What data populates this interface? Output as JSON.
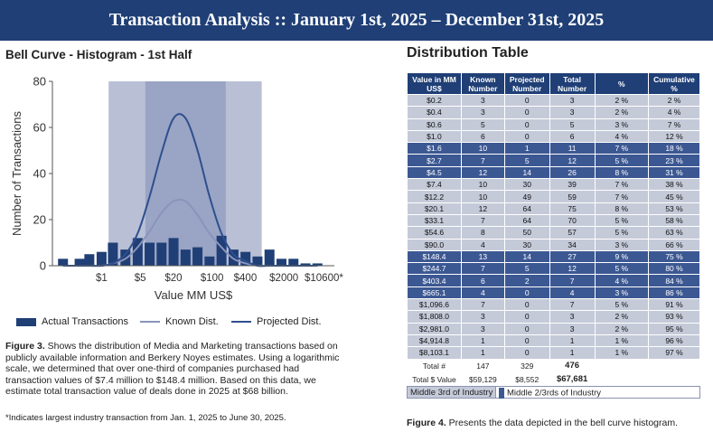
{
  "banner": {
    "title": "Transaction Analysis  ::  January 1st, 2025 – December 31st, 2025"
  },
  "left": {
    "title": "Bell Curve - Histogram - 1st Half",
    "legend": {
      "actual": "Actual Transactions",
      "known": "Known Dist.",
      "projected": "Projected Dist."
    },
    "caption_lead": "Figure 3.",
    "caption_text": " Shows the distribution of Media and Marketing transactions based on publicly available information and Berkery Noyes estimates. Using a logarithmic scale, we determined that over one-third of companies purchased had transaction values of $7.4 million to $148.4 million. Based on this data, we estimate total transaction value of deals done in 2025 at $68 billion.",
    "footnote": "*Indicates largest industry transaction from Jan. 1, 2025 to June 30, 2025."
  },
  "right": {
    "title": "Distribution Table",
    "headers": [
      "Value in MM US$",
      "Known Number",
      "Projected Number",
      "Total Number",
      "%",
      "Cumulative %"
    ],
    "rows": [
      {
        "v": "$0.2",
        "k": "3",
        "p": "0",
        "t": "3",
        "pct": "2 %",
        "cum": "2 %",
        "shade": "light"
      },
      {
        "v": "$0.4",
        "k": "3",
        "p": "0",
        "t": "3",
        "pct": "2 %",
        "cum": "4 %",
        "shade": "light"
      },
      {
        "v": "$0.6",
        "k": "5",
        "p": "0",
        "t": "5",
        "pct": "3 %",
        "cum": "7 %",
        "shade": "light"
      },
      {
        "v": "$1.0",
        "k": "6",
        "p": "0",
        "t": "6",
        "pct": "4 %",
        "cum": "12 %",
        "shade": "light"
      },
      {
        "v": "$1.6",
        "k": "10",
        "p": "1",
        "t": "11",
        "pct": "7 %",
        "cum": "18 %",
        "shade": "dark"
      },
      {
        "v": "$2.7",
        "k": "7",
        "p": "5",
        "t": "12",
        "pct": "5 %",
        "cum": "23 %",
        "shade": "dark"
      },
      {
        "v": "$4.5",
        "k": "12",
        "p": "14",
        "t": "26",
        "pct": "8 %",
        "cum": "31 %",
        "shade": "dark"
      },
      {
        "v": "$7.4",
        "k": "10",
        "p": "30",
        "t": "39",
        "pct": "7 %",
        "cum": "38 %",
        "shade": "light"
      },
      {
        "v": "$12.2",
        "k": "10",
        "p": "49",
        "t": "59",
        "pct": "7 %",
        "cum": "45 %",
        "shade": "light"
      },
      {
        "v": "$20.1",
        "k": "12",
        "p": "64",
        "t": "75",
        "pct": "8 %",
        "cum": "53 %",
        "shade": "light"
      },
      {
        "v": "$33.1",
        "k": "7",
        "p": "64",
        "t": "70",
        "pct": "5 %",
        "cum": "58 %",
        "shade": "light"
      },
      {
        "v": "$54.6",
        "k": "8",
        "p": "50",
        "t": "57",
        "pct": "5 %",
        "cum": "63 %",
        "shade": "light"
      },
      {
        "v": "$90.0",
        "k": "4",
        "p": "30",
        "t": "34",
        "pct": "3 %",
        "cum": "66 %",
        "shade": "light"
      },
      {
        "v": "$148.4",
        "k": "13",
        "p": "14",
        "t": "27",
        "pct": "9 %",
        "cum": "75 %",
        "shade": "dark"
      },
      {
        "v": "$244.7",
        "k": "7",
        "p": "5",
        "t": "12",
        "pct": "5 %",
        "cum": "80 %",
        "shade": "dark"
      },
      {
        "v": "$403.4",
        "k": "6",
        "p": "2",
        "t": "7",
        "pct": "4 %",
        "cum": "84 %",
        "shade": "dark"
      },
      {
        "v": "$665.1",
        "k": "4",
        "p": "0",
        "t": "4",
        "pct": "3 %",
        "cum": "86 %",
        "shade": "dark"
      },
      {
        "v": "$1,096.6",
        "k": "7",
        "p": "0",
        "t": "7",
        "pct": "5 %",
        "cum": "91 %",
        "shade": "light"
      },
      {
        "v": "$1,808.0",
        "k": "3",
        "p": "0",
        "t": "3",
        "pct": "2 %",
        "cum": "93 %",
        "shade": "light"
      },
      {
        "v": "$2,981.0",
        "k": "3",
        "p": "0",
        "t": "3",
        "pct": "2 %",
        "cum": "95 %",
        "shade": "light"
      },
      {
        "v": "$4,914.8",
        "k": "1",
        "p": "0",
        "t": "1",
        "pct": "1 %",
        "cum": "96 %",
        "shade": "light"
      },
      {
        "v": "$8,103.1",
        "k": "1",
        "p": "0",
        "t": "1",
        "pct": "1 %",
        "cum": "97 %",
        "shade": "light"
      }
    ],
    "total_num": {
      "label": "Total #",
      "k": "147",
      "p": "329",
      "t": "476"
    },
    "total_val": {
      "label": "Total $ Value",
      "k": "$59,129",
      "p": "$8,552",
      "t": "$67,681"
    },
    "legend_light": "Middle 3rd of Industry",
    "legend_dark": "Middle 2/3rds of Industry",
    "caption_lead": "Figure 4.",
    "caption_text": " Presents the data depicted in the bell curve histogram."
  },
  "colors": {
    "bar": "#1f3f76",
    "outer_band": "#b9c0d6",
    "inner_band": "#9aa4c4",
    "known_line": "#8a94bb",
    "projected_line": "#2e4f8e"
  },
  "chart_data": {
    "type": "bar",
    "title": "Bell Curve - Histogram - 1st Half",
    "xlabel": "Value MM US$",
    "ylabel": "Number of Transactions",
    "ylim": [
      0,
      80
    ],
    "yticks": [
      0,
      20,
      40,
      60,
      80
    ],
    "x_scale": "log",
    "xtick_labels": [
      "$1",
      "$5",
      "$20",
      "$100",
      "$400",
      "$2000",
      "$10600*"
    ],
    "xtick_values": [
      1,
      5,
      20,
      100,
      400,
      2000,
      10600
    ],
    "categories": [
      0.2,
      0.4,
      0.6,
      1.0,
      1.6,
      2.7,
      4.5,
      7.4,
      12.2,
      20.1,
      33.1,
      54.6,
      90.0,
      148.4,
      244.7,
      403.4,
      665.1,
      1096.6,
      1808.0,
      2981.0,
      4914.8,
      8103.1
    ],
    "series": [
      {
        "name": "Actual Transactions",
        "type": "bar",
        "values": [
          3,
          3,
          5,
          6,
          10,
          7,
          12,
          10,
          10,
          12,
          7,
          8,
          4,
          13,
          7,
          6,
          4,
          7,
          3,
          3,
          1,
          1
        ]
      },
      {
        "name": "Known Dist.",
        "type": "line",
        "values": [
          0,
          0,
          0,
          0,
          1,
          3,
          8,
          15,
          23,
          28,
          28,
          22,
          14,
          8,
          3,
          1,
          0,
          0,
          0,
          0,
          0,
          0
        ]
      },
      {
        "name": "Projected Dist.",
        "type": "line",
        "values": [
          0,
          0,
          0,
          0,
          1,
          5,
          14,
          30,
          49,
          64,
          64,
          50,
          30,
          14,
          5,
          2,
          0,
          0,
          0,
          0,
          0,
          0
        ]
      }
    ],
    "bands": [
      {
        "name": "Middle 3rd of Industry",
        "from": 7.4,
        "to": 148.4
      },
      {
        "name": "Middle 2/3rds of Industry",
        "from": 1.6,
        "to": 665.1
      }
    ],
    "grid": false,
    "legend_position": "bottom"
  }
}
